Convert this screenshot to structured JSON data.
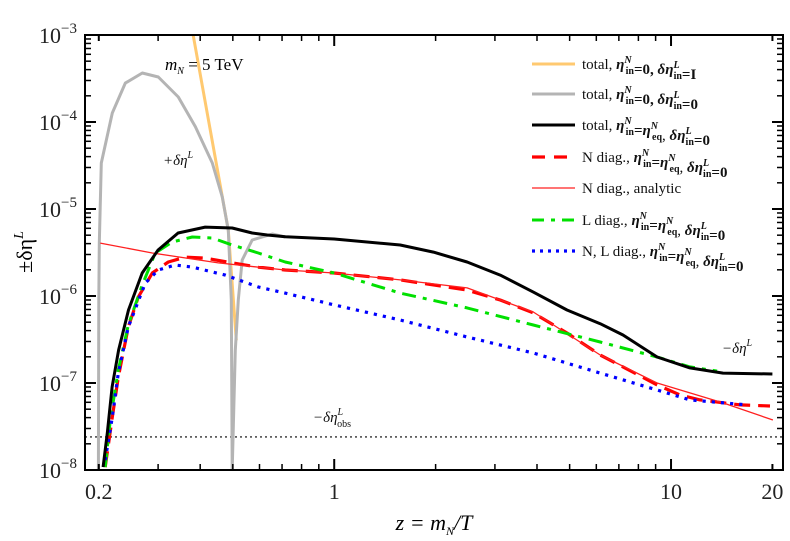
{
  "chart_data": {
    "type": "line",
    "xscale": "log",
    "yscale": "log",
    "xlim": [
      0.182,
      21.5
    ],
    "ylim": [
      1e-08,
      0.001
    ],
    "xlabel": {
      "main": "z = m",
      "sub": "N",
      "tail": "/T"
    },
    "ylabel": {
      "main": "±δη",
      "sup": "L"
    },
    "x_ticks": [
      {
        "value": 0.2,
        "label": "0.2"
      },
      {
        "value": 1,
        "label": "1"
      },
      {
        "value": 10,
        "label": "10"
      },
      {
        "value": 20,
        "label": "20"
      }
    ],
    "y_ticks": [
      {
        "value": 0.001,
        "base": "10",
        "exp": "−3"
      },
      {
        "value": 0.0001,
        "base": "10",
        "exp": "−4"
      },
      {
        "value": 1e-05,
        "base": "10",
        "exp": "−5"
      },
      {
        "value": 1e-06,
        "base": "10",
        "exp": "−6"
      },
      {
        "value": 1e-07,
        "base": "10",
        "exp": "−7"
      },
      {
        "value": 1e-08,
        "base": "10",
        "exp": "−8"
      }
    ],
    "grid": false,
    "legend_position": "top-right",
    "annotations": {
      "mass": {
        "pre": "m",
        "sub": "N",
        "post": " = 5 TeV"
      },
      "plus": {
        "pre": "+δη",
        "sup": "L"
      },
      "minus": {
        "pre": "−δη",
        "sup": "L"
      },
      "obs": {
        "pre": "−δη",
        "sup": "L",
        "sub": "obs"
      }
    },
    "reference_line": {
      "y": 2.4e-08,
      "style": "dotted",
      "color": "#000000"
    },
    "series": [
      {
        "legend": [
          {
            "t": "total, "
          },
          {
            "t": "η",
            "sup": "N",
            "sub": "in",
            "b": 1
          },
          {
            "t": "=0, ",
            "b": 1
          },
          {
            "t": "δη",
            "sup": "L",
            "sub": "in",
            "b": 1
          },
          {
            "t": "=I",
            "b": 1
          }
        ],
        "color": "#ffc970",
        "style": "solid",
        "width": 3,
        "points": [
          [
            0.374,
            0.0015
          ],
          [
            0.4847,
            5.7e-06
          ],
          [
            0.512,
            3.1e-07
          ]
        ]
      },
      {
        "legend": [
          {
            "t": "total, "
          },
          {
            "t": "η",
            "sup": "N",
            "sub": "in",
            "b": 1
          },
          {
            "t": "=0, ",
            "b": 1
          },
          {
            "t": "δη",
            "sup": "L",
            "sub": "in",
            "b": 1
          },
          {
            "t": "=0",
            "b": 1
          }
        ],
        "color": "#b4b4b4",
        "style": "solid",
        "width": 3,
        "points": [
          [
            0.1994,
            1e-08
          ],
          [
            0.2,
            9e-07
          ],
          [
            0.2007,
            4.06e-06
          ],
          [
            0.2034,
            3.38e-05
          ],
          [
            0.2194,
            0.000127
          ],
          [
            0.2397,
            0.00028
          ],
          [
            0.2693,
            0.000366
          ],
          [
            0.3004,
            0.000329
          ],
          [
            0.3444,
            0.000194
          ],
          [
            0.387,
            8.8e-05
          ],
          [
            0.4345,
            3.38e-05
          ],
          [
            0.4652,
            1.37e-05
          ],
          [
            0.4847,
            5.7e-06
          ],
          [
            0.4948,
            9e-07
          ],
          [
            0.498,
            1e-08
          ],
          [
            0.5084,
            2.39e-07
          ],
          [
            0.519,
            9e-07
          ],
          [
            0.533,
            2.59e-06
          ],
          [
            0.571,
            4.4e-06
          ],
          [
            0.655,
            5.16e-06
          ],
          [
            0.7155,
            4.77e-06
          ]
        ]
      },
      {
        "legend": [
          {
            "t": "total, "
          },
          {
            "t": "η",
            "sup": "N",
            "sub": "in",
            "b": 1
          },
          {
            "t": "=",
            "b": 1
          },
          {
            "t": "η",
            "sup": "N",
            "sub": "eq",
            "b": 1
          },
          {
            "t": ", "
          },
          {
            "t": "δη",
            "sup": "L",
            "sub": "in",
            "b": 1
          },
          {
            "t": "=0",
            "b": 1
          }
        ],
        "color": "#000000",
        "style": "solid",
        "width": 3,
        "points": [
          [
            0.206,
            1.08e-08
          ],
          [
            0.212,
            2.66e-08
          ],
          [
            0.219,
            9e-08
          ],
          [
            0.229,
            2.39e-07
          ],
          [
            0.245,
            6.9e-07
          ],
          [
            0.269,
            1.84e-06
          ],
          [
            0.3,
            3.38e-06
          ],
          [
            0.344,
            5.3e-06
          ],
          [
            0.414,
            6.2e-06
          ],
          [
            0.498,
            6.05e-06
          ],
          [
            0.571,
            5.3e-06
          ],
          [
            0.633,
            5.03e-06
          ],
          [
            0.716,
            4.8e-06
          ],
          [
            1.0,
            4.52e-06
          ],
          [
            1.57,
            3.86e-06
          ],
          [
            1.97,
            3.2e-06
          ],
          [
            2.48,
            2.46e-06
          ],
          [
            3.11,
            1.74e-06
          ],
          [
            3.9,
            1.11e-06
          ],
          [
            4.91,
            6.9e-07
          ],
          [
            6.16,
            4.8e-07
          ],
          [
            7.2,
            3.56e-07
          ],
          [
            9.09,
            1.99e-07
          ],
          [
            11.38,
            1.49e-07
          ],
          [
            14.27,
            1.3e-07
          ],
          [
            20.0,
            1.27e-07
          ]
        ]
      },
      {
        "legend": [
          {
            "t": "N diag., "
          },
          {
            "t": "η",
            "sup": "N",
            "sub": "in",
            "b": 1
          },
          {
            "t": "=",
            "b": 1
          },
          {
            "t": "η",
            "sup": "N",
            "sub": "eq",
            "b": 1
          },
          {
            "t": ", "
          },
          {
            "t": "δη",
            "sup": "L",
            "sub": "in",
            "b": 1
          },
          {
            "t": "=0",
            "b": 1
          }
        ],
        "color": "#ff0000",
        "style": "dashed",
        "width": 3.2,
        "points": [
          [
            0.209,
            1.08e-08
          ],
          [
            0.2194,
            4.06e-08
          ],
          [
            0.2286,
            1.17e-07
          ],
          [
            0.2447,
            4.4e-07
          ],
          [
            0.262,
            9.75e-07
          ],
          [
            0.2884,
            1.84e-06
          ],
          [
            0.3217,
            2.46e-06
          ],
          [
            0.3613,
            2.8e-06
          ],
          [
            0.4142,
            2.73e-06
          ],
          [
            0.498,
            2.4e-06
          ],
          [
            0.595,
            2.15e-06
          ],
          [
            0.7155,
            1.99e-06
          ],
          [
            1.0,
            1.84e-06
          ],
          [
            1.57,
            1.53e-06
          ],
          [
            2.48,
            1.17e-06
          ],
          [
            3.11,
            9e-07
          ],
          [
            3.9,
            6.4e-07
          ],
          [
            4.91,
            3.76e-07
          ],
          [
            6.16,
            2.1e-07
          ],
          [
            7.2,
            1.53e-07
          ],
          [
            9.09,
            9.5e-08
          ],
          [
            10.63,
            7.3e-08
          ],
          [
            12.19,
            6.4e-08
          ],
          [
            16.02,
            5.6e-08
          ],
          [
            19.67,
            5.44e-08
          ]
        ]
      },
      {
        "legend": [
          {
            "t": "N diag., analytic"
          }
        ],
        "color": "#ff2020",
        "style": "solid",
        "width": 1.3,
        "points": [
          [
            0.202,
            4.06e-06
          ],
          [
            0.2884,
            3.12e-06
          ],
          [
            0.4527,
            2.4e-06
          ],
          [
            0.7155,
            1.99e-06
          ],
          [
            1.0,
            1.84e-06
          ],
          [
            1.57,
            1.53e-06
          ],
          [
            2.48,
            1.24e-06
          ],
          [
            3.9,
            6.55e-07
          ],
          [
            6.16,
            2.1e-07
          ],
          [
            9.09,
            1e-07
          ],
          [
            11.38,
            7.7e-08
          ],
          [
            14.27,
            5.9e-08
          ],
          [
            20.07,
            3.76e-08
          ]
        ]
      },
      {
        "legend": [
          {
            "t": "L diag., "
          },
          {
            "t": "η",
            "sup": "N",
            "sub": "in",
            "b": 1
          },
          {
            "t": "=",
            "b": 1
          },
          {
            "t": "η",
            "sup": "N",
            "sub": "eq",
            "b": 1
          },
          {
            "t": ", "
          },
          {
            "t": "δη",
            "sup": "L",
            "sub": "in",
            "b": 1
          },
          {
            "t": "=0",
            "b": 1
          }
        ],
        "color": "#00e000",
        "style": "dashdot",
        "width": 3,
        "points": [
          [
            0.209,
            1.08e-08
          ],
          [
            0.2164,
            3.76e-08
          ],
          [
            0.2286,
            1.41e-07
          ],
          [
            0.2447,
            4.64e-07
          ],
          [
            0.2693,
            1.34e-06
          ],
          [
            0.2942,
            3.12e-06
          ],
          [
            0.3306,
            4.18e-06
          ],
          [
            0.379,
            4.77e-06
          ],
          [
            0.4345,
            4.64e-06
          ],
          [
            0.498,
            3.86e-06
          ],
          [
            0.595,
            3.12e-06
          ],
          [
            0.7155,
            2.46e-06
          ],
          [
            1.0,
            1.84e-06
          ],
          [
            1.57,
            1.08e-06
          ],
          [
            2.48,
            7.3e-07
          ],
          [
            3.9,
            4.64e-07
          ],
          [
            6.16,
            2.96e-07
          ],
          [
            9.09,
            1.99e-07
          ],
          [
            11.38,
            1.53e-07
          ],
          [
            13.7,
            1.37e-07
          ]
        ]
      },
      {
        "legend": [
          {
            "t": "N, L diag., "
          },
          {
            "t": "η",
            "sup": "N",
            "sub": "in",
            "b": 1
          },
          {
            "t": "=",
            "b": 1
          },
          {
            "t": "η",
            "sup": "N",
            "sub": "eq",
            "b": 1
          },
          {
            "t": ", "
          },
          {
            "t": "δη",
            "sup": "L",
            "sub": "in",
            "b": 1
          },
          {
            "t": "=0",
            "b": 1
          }
        ],
        "color": "#0000ff",
        "style": "dotted",
        "width": 3.2,
        "points": [
          [
            0.209,
            1.3e-08
          ],
          [
            0.2194,
            4.06e-08
          ],
          [
            0.2286,
            1.3e-07
          ],
          [
            0.2447,
            4.4e-07
          ],
          [
            0.2749,
            1.41e-06
          ],
          [
            0.3004,
            1.99e-06
          ],
          [
            0.3374,
            2.27e-06
          ],
          [
            0.379,
            2.15e-06
          ],
          [
            0.4749,
            1.74e-06
          ],
          [
            0.595,
            1.27e-06
          ],
          [
            0.7155,
            1.08e-06
          ],
          [
            1.0,
            7.9e-07
          ],
          [
            1.57,
            5.3e-07
          ],
          [
            2.48,
            3.38e-07
          ],
          [
            3.9,
            2.21e-07
          ],
          [
            6.16,
            1.3e-07
          ],
          [
            9.09,
            8.3e-08
          ],
          [
            11.38,
            6.4e-08
          ],
          [
            16.8,
            5.6e-08
          ]
        ]
      }
    ]
  }
}
